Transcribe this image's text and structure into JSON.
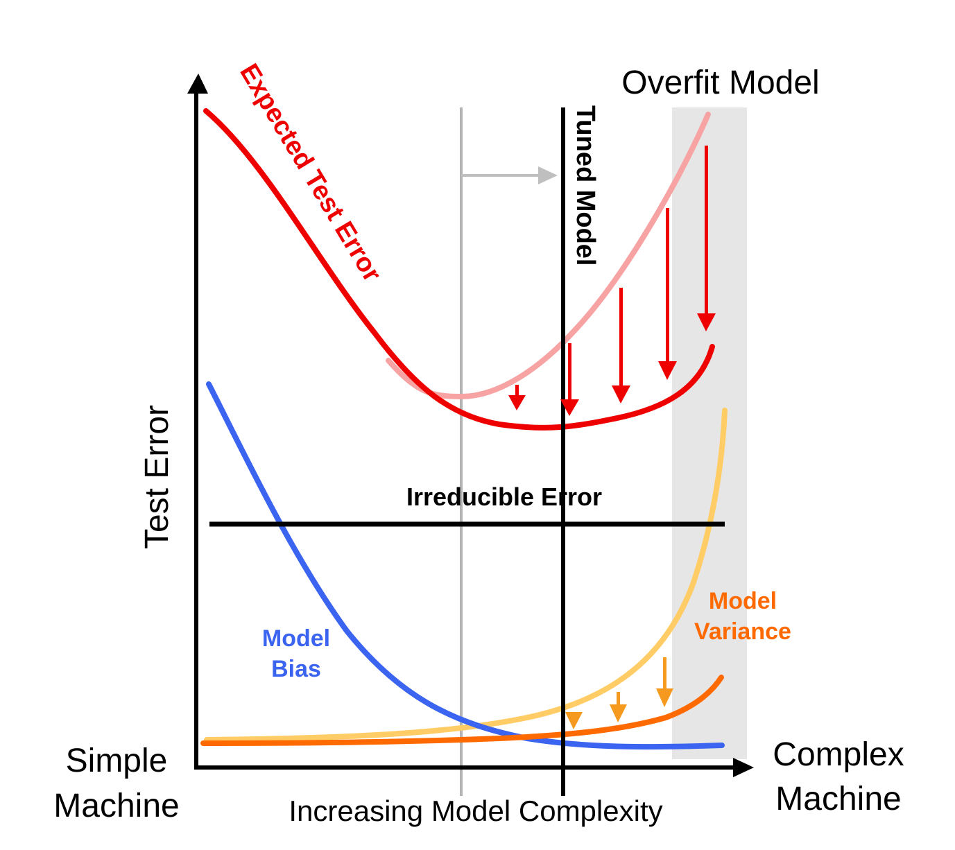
{
  "title": "Overfit Model",
  "y_axis_label": "Test Error",
  "x_axis_label": "Increasing Model Complexity",
  "x_left_label": [
    "Simple",
    "Machine"
  ],
  "x_right_label": [
    "Complex",
    "Machine"
  ],
  "tuned_model_label": "Tuned Model",
  "irreducible_error_label": "Irreducible Error",
  "expected_test_error_label": "Expected Test Error",
  "model_bias_label": [
    "Model",
    "Bias"
  ],
  "model_variance_label": [
    "Model",
    "Variance"
  ],
  "colors": {
    "expected_error": "#ee0000",
    "expected_error_faded": "#f7a3a3",
    "bias": "#3b64f0",
    "variance": "#ff6a00",
    "variance_faded": "#ffcc66",
    "variance_arrow": "#f59a1e",
    "axis": "#000000",
    "shade": "#e6e6e6",
    "gray_line": "#b3b3b3"
  },
  "icons": [
    "up-arrow-axis-icon",
    "right-arrow-axis-icon",
    "down-arrow-icon",
    "right-arrow-gray-icon"
  ]
}
